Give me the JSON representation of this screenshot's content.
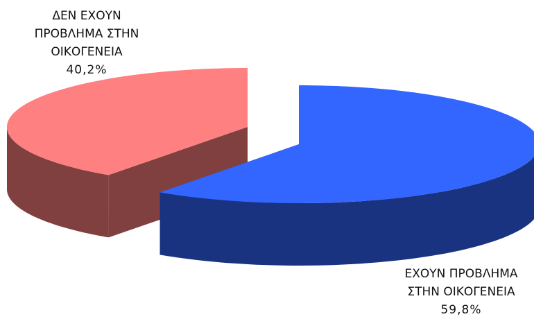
{
  "chart_data": {
    "type": "pie",
    "style": "3d-exploded",
    "slices": [
      {
        "label": "ΔΕΝ ΕΧΟΥΝ ΠΡΟΒΛΗΜΑ ΣΤΗΝ ΟΙΚΟΓΕΝΕΙΑ",
        "lines": [
          "ΔΕΝ ΕΧΟΥΝ",
          "ΠΡΟΒΛΗΜΑ ΣΤΗΝ",
          "ΟΙΚΟΓΕΝΕΙΑ"
        ],
        "value": 40.2,
        "value_label": "40,2%",
        "color": "#FF8080",
        "side_color": "#804040"
      },
      {
        "label": "ΕΧΟΥΝ ΠΡΟΒΛΗΜΑ ΣΤΗΝ ΟΙΚΟΓΕΝΕΙΑ",
        "lines": [
          "ΕΧΟΥΝ ΠΡΟΒΛΗΜΑ",
          "ΣΤΗΝ ΟΙΚΟΓΕΝΕΙΑ"
        ],
        "value": 59.8,
        "value_label": "59,8%",
        "color": "#3366FF",
        "side_color": "#1A3380"
      }
    ]
  }
}
